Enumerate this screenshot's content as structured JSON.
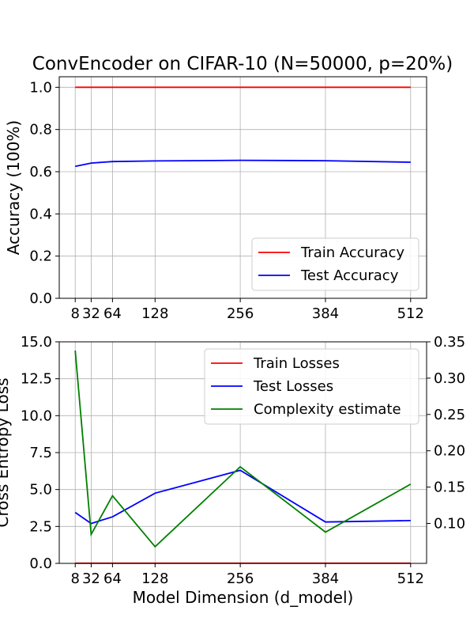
{
  "chart_data": [
    {
      "type": "line",
      "title": "ConvEncoder on CIFAR-10 (N=50000, p=20%)",
      "xlabel": "",
      "ylabel": "Accuracy (100%)",
      "x": [
        8,
        32,
        64,
        128,
        256,
        384,
        512
      ],
      "xticks": [
        "8",
        "32",
        "64",
        "128",
        "256",
        "384",
        "512"
      ],
      "ylim": [
        0,
        1.05
      ],
      "yticks": [
        "0.0",
        "0.2",
        "0.4",
        "0.6",
        "0.8",
        "1.0"
      ],
      "grid": true,
      "legend": "bottom-right",
      "series": [
        {
          "name": "Train Accuracy",
          "color": "#ff0000",
          "values": [
            1.0,
            1.0,
            1.0,
            1.0,
            1.0,
            1.0,
            1.0
          ]
        },
        {
          "name": "Test Accuracy",
          "color": "#0000ff",
          "values": [
            0.625,
            0.641,
            0.648,
            0.651,
            0.654,
            0.652,
            0.645
          ]
        }
      ]
    },
    {
      "type": "line",
      "title": "",
      "xlabel": "Model Dimension (d_model)",
      "ylabel": "Cross Entropy Loss",
      "x": [
        8,
        32,
        64,
        128,
        256,
        384,
        512
      ],
      "xticks": [
        "8",
        "32",
        "64",
        "128",
        "256",
        "384",
        "512"
      ],
      "ylim": [
        0,
        15
      ],
      "yticks": [
        "0.0",
        "2.5",
        "5.0",
        "7.5",
        "10.0",
        "12.5",
        "15.0"
      ],
      "y2lim": [
        0.045,
        0.35
      ],
      "y2ticks": [
        "0.10",
        "0.15",
        "0.20",
        "0.25",
        "0.30",
        "0.35"
      ],
      "grid": true,
      "legend": "top-right",
      "series": [
        {
          "name": "Train Losses",
          "color": "#ff0000",
          "axis": "left",
          "values": [
            0.01,
            0.01,
            0.01,
            0.01,
            0.01,
            0.01,
            0.01
          ]
        },
        {
          "name": "Test Losses",
          "color": "#0000ff",
          "axis": "left",
          "values": [
            3.45,
            2.7,
            3.15,
            4.75,
            6.3,
            2.8,
            2.9
          ]
        },
        {
          "name": "Complexity estimate",
          "color": "#008000",
          "axis": "right",
          "values": [
            0.338,
            0.085,
            0.138,
            0.068,
            0.178,
            0.088,
            0.154
          ]
        }
      ]
    }
  ]
}
